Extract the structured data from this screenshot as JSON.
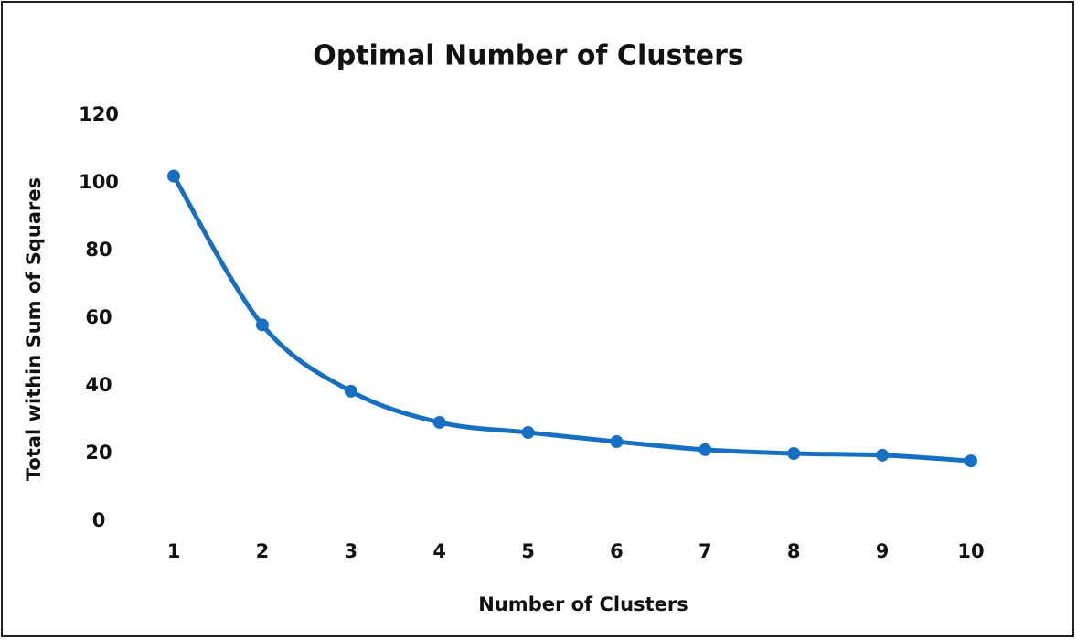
{
  "chart_data": {
    "type": "line",
    "title": "Optimal Number of Clusters",
    "x_label": "Number of Clusters",
    "y_label": "Total within Sum of Squares",
    "x": [
      1,
      2,
      3,
      4,
      5,
      6,
      7,
      8,
      9,
      10
    ],
    "values": [
      102,
      58,
      38.4,
      29.2,
      26.2,
      23.5,
      21.1,
      20,
      19.5,
      17.8
    ],
    "color": "#1570c4",
    "xlim": [
      1,
      10
    ],
    "xticks": [
      1,
      2,
      3,
      4,
      5,
      6,
      7,
      8,
      9,
      10
    ],
    "ylim": [
      0,
      120
    ],
    "yticks": [
      0,
      20,
      40,
      60,
      80,
      100,
      120
    ],
    "grid": false,
    "smooth": true,
    "markers": true
  }
}
